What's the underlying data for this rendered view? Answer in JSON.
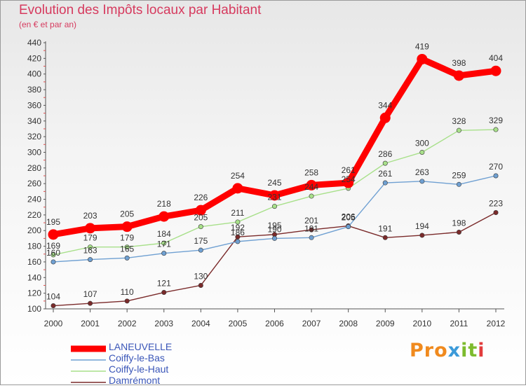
{
  "chart_data": {
    "type": "line",
    "title": "Evolution des Impôts locaux par Habitant",
    "subtitle": "(en € et par an)",
    "x": [
      "2000",
      "2001",
      "2002",
      "2003",
      "2004",
      "2005",
      "2006",
      "2007",
      "2008",
      "2009",
      "2010",
      "2011",
      "2012"
    ],
    "ylim": [
      100,
      440
    ],
    "yticks": [
      100,
      120,
      140,
      160,
      180,
      200,
      220,
      240,
      260,
      280,
      300,
      320,
      340,
      360,
      380,
      400,
      420,
      440
    ],
    "grid": false,
    "legend_position": "bottom-left",
    "series": [
      {
        "name": "LANEUVELLE",
        "color": "#ff0000",
        "values": [
          195,
          203,
          205,
          218,
          226,
          254,
          245,
          258,
          261,
          344,
          419,
          398,
          404
        ]
      },
      {
        "name": "Coiffy-le-Bas",
        "color": "#6fa0d2",
        "values": [
          160,
          163,
          165,
          171,
          175,
          186,
          190,
          191,
          205,
          261,
          263,
          259,
          270
        ]
      },
      {
        "name": "Coiffy-le-Haut",
        "color": "#a8e08a",
        "values": [
          169,
          179,
          179,
          184,
          205,
          211,
          231,
          244,
          254,
          286,
          300,
          328,
          329
        ]
      },
      {
        "name": "Damrémont",
        "color": "#7a2a2a",
        "values": [
          104,
          107,
          110,
          121,
          130,
          192,
          195,
          201,
          206,
          191,
          194,
          198,
          223
        ]
      }
    ]
  },
  "logo": {
    "text": "Proxiti",
    "part1": "Pro",
    "part2": "x",
    "part3": "it",
    "part4": "i"
  }
}
